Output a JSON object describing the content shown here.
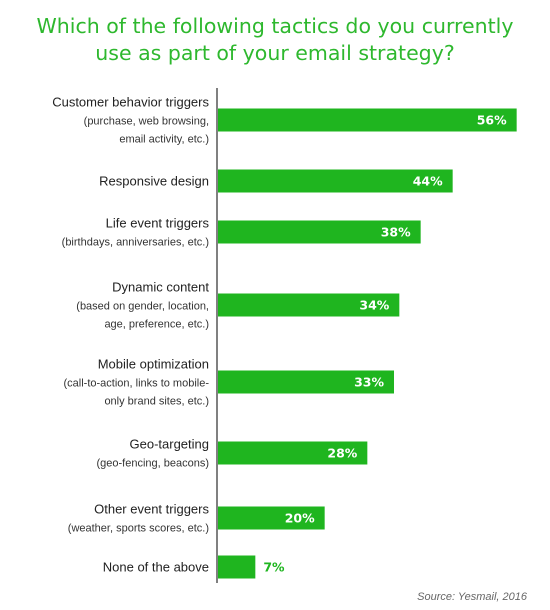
{
  "chart_data": {
    "type": "bar",
    "orientation": "horizontal",
    "title_lines": [
      "Which of the following tactics do you currently",
      "use as part of your email strategy?"
    ],
    "categories": [
      {
        "label": "Customer behavior triggers",
        "sub": [
          "(purchase, web browsing,",
          "email activity, etc.)"
        ]
      },
      {
        "label": "Responsive design",
        "sub": []
      },
      {
        "label": "Life event triggers",
        "sub": [
          "(birthdays, anniversaries, etc.)"
        ]
      },
      {
        "label": "Dynamic content",
        "sub": [
          "(based on gender, location,",
          "age, preference, etc.)"
        ]
      },
      {
        "label": "Mobile optimization",
        "sub": [
          "(call-to-action, links to mobile-",
          "only brand sites, etc.)"
        ]
      },
      {
        "label": "Geo-targeting",
        "sub": [
          "(geo-fencing, beacons)"
        ]
      },
      {
        "label": "Other event triggers",
        "sub": [
          "(weather, sports scores, etc.)"
        ]
      },
      {
        "label": "None of the above",
        "sub": []
      }
    ],
    "values": [
      56,
      44,
      38,
      34,
      33,
      28,
      20,
      7
    ],
    "value_labels": [
      "56%",
      "44%",
      "38%",
      "34%",
      "33%",
      "28%",
      "20%",
      "7%"
    ],
    "xlim": [
      0,
      60
    ],
    "source": "Source: Yesmail, 2016",
    "colors": {
      "title": "#2eb82e",
      "bar": "#1fb51f",
      "axis": "#000000",
      "label_inside": "#ffffff",
      "label_outside": "#1fb51f"
    }
  }
}
